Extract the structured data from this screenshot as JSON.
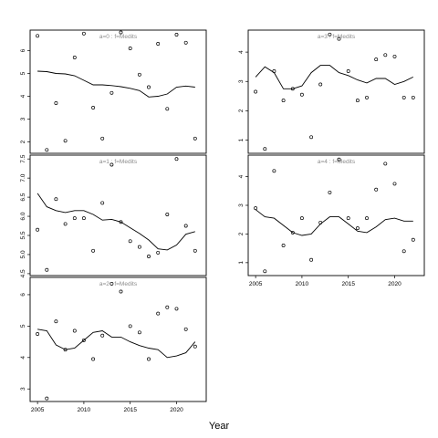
{
  "chart_data": {
    "type": "scatter",
    "xlabel": "Year",
    "x_ticks": [
      2005,
      2010,
      2015,
      2020
    ],
    "panels": [
      {
        "label": "a=0 : f=Medits",
        "xlim": [
          2004.2,
          2023.2
        ],
        "ylim": [
          1.5,
          6.9
        ],
        "y_ticks": [
          2,
          3,
          4,
          5,
          6
        ],
        "points": {
          "x": [
            2005,
            2006,
            2007,
            2008,
            2009,
            2010,
            2011,
            2012,
            2013,
            2014,
            2015,
            2016,
            2017,
            2018,
            2019,
            2020,
            2021,
            2022
          ],
          "y": [
            6.65,
            1.65,
            3.7,
            2.05,
            5.7,
            6.75,
            3.5,
            2.15,
            4.15,
            6.8,
            6.1,
            4.95,
            4.4,
            6.3,
            3.45,
            6.7,
            6.35,
            2.15
          ]
        },
        "fit": {
          "x": [
            2005,
            2006,
            2007,
            2008,
            2009,
            2010,
            2011,
            2012,
            2013,
            2014,
            2015,
            2016,
            2017,
            2018,
            2019,
            2020,
            2021,
            2022
          ],
          "y": [
            5.1,
            5.08,
            5.0,
            4.98,
            4.9,
            4.7,
            4.5,
            4.5,
            4.47,
            4.42,
            4.35,
            4.25,
            3.97,
            4.0,
            4.1,
            4.4,
            4.45,
            4.4
          ]
        }
      },
      {
        "label": "a=1 : f=Medits",
        "xlim": [
          2004.2,
          2023.2
        ],
        "ylim": [
          4.45,
          7.6
        ],
        "y_ticks": [
          4.5,
          5.0,
          5.5,
          6.0,
          6.5,
          7.0,
          7.5
        ],
        "points": {
          "x": [
            2005,
            2006,
            2007,
            2008,
            2009,
            2010,
            2011,
            2012,
            2013,
            2014,
            2015,
            2016,
            2017,
            2018,
            2019,
            2020,
            2021,
            2022
          ],
          "y": [
            5.65,
            4.6,
            6.45,
            5.8,
            5.95,
            5.95,
            5.1,
            6.35,
            7.35,
            5.85,
            5.35,
            5.2,
            4.95,
            5.05,
            6.05,
            7.5,
            5.75,
            5.1
          ]
        },
        "fit": {
          "x": [
            2005,
            2006,
            2007,
            2008,
            2009,
            2010,
            2011,
            2012,
            2013,
            2014,
            2015,
            2016,
            2017,
            2018,
            2019,
            2020,
            2021,
            2022
          ],
          "y": [
            6.6,
            6.25,
            6.15,
            6.1,
            6.15,
            6.15,
            6.05,
            5.9,
            5.92,
            5.85,
            5.7,
            5.55,
            5.38,
            5.15,
            5.12,
            5.25,
            5.53,
            5.6
          ]
        }
      },
      {
        "label": "a=2 : f=Medits",
        "xlim": [
          2004.2,
          2023.2
        ],
        "ylim": [
          2.6,
          6.55
        ],
        "y_ticks": [
          3,
          4,
          5,
          6
        ],
        "points": {
          "x": [
            2005,
            2006,
            2007,
            2008,
            2009,
            2010,
            2011,
            2012,
            2013,
            2014,
            2015,
            2016,
            2017,
            2018,
            2019,
            2020,
            2021,
            2022
          ],
          "y": [
            4.75,
            2.7,
            5.15,
            4.25,
            4.85,
            4.55,
            3.95,
            4.7,
            6.35,
            6.1,
            5.0,
            4.8,
            3.95,
            5.4,
            5.6,
            5.55,
            4.9,
            4.35
          ]
        },
        "fit": {
          "x": [
            2005,
            2006,
            2007,
            2008,
            2009,
            2010,
            2011,
            2012,
            2013,
            2014,
            2015,
            2016,
            2017,
            2018,
            2019,
            2020,
            2021,
            2022
          ],
          "y": [
            4.9,
            4.85,
            4.4,
            4.25,
            4.3,
            4.55,
            4.8,
            4.85,
            4.65,
            4.65,
            4.5,
            4.38,
            4.3,
            4.25,
            4.0,
            4.05,
            4.15,
            4.5
          ]
        }
      },
      {
        "label": "a=3 : f=Medits",
        "xlim": [
          2004.2,
          2023.2
        ],
        "ylim": [
          0.55,
          4.75
        ],
        "y_ticks": [
          1,
          2,
          3,
          4
        ],
        "points": {
          "x": [
            2005,
            2006,
            2007,
            2008,
            2009,
            2010,
            2011,
            2012,
            2013,
            2014,
            2015,
            2016,
            2017,
            2018,
            2019,
            2020,
            2021,
            2022
          ],
          "y": [
            2.65,
            0.7,
            3.35,
            2.35,
            2.75,
            2.55,
            1.1,
            2.9,
            4.6,
            4.45,
            3.35,
            2.35,
            2.45,
            3.75,
            3.9,
            3.85,
            2.45,
            2.45
          ]
        },
        "fit": {
          "x": [
            2005,
            2006,
            2007,
            2008,
            2009,
            2010,
            2011,
            2012,
            2013,
            2014,
            2015,
            2016,
            2017,
            2018,
            2019,
            2020,
            2021,
            2022
          ],
          "y": [
            3.15,
            3.5,
            3.3,
            2.75,
            2.75,
            2.85,
            3.3,
            3.55,
            3.55,
            3.3,
            3.2,
            3.05,
            2.95,
            3.1,
            3.1,
            2.9,
            3.0,
            3.15
          ]
        }
      },
      {
        "label": "a=4 : f=Medits",
        "xlim": [
          2004.2,
          2023.2
        ],
        "ylim": [
          0.55,
          4.75
        ],
        "y_ticks": [
          1,
          2,
          3,
          4
        ],
        "points": {
          "x": [
            2005,
            2006,
            2007,
            2008,
            2009,
            2010,
            2011,
            2012,
            2013,
            2014,
            2015,
            2016,
            2017,
            2018,
            2019,
            2020,
            2021,
            2022
          ],
          "y": [
            2.9,
            0.7,
            4.2,
            1.6,
            2.05,
            2.55,
            1.1,
            2.4,
            3.45,
            4.6,
            2.55,
            2.2,
            2.55,
            3.55,
            4.45,
            3.75,
            1.4,
            1.8
          ]
        },
        "fit": {
          "x": [
            2005,
            2006,
            2007,
            2008,
            2009,
            2010,
            2011,
            2012,
            2013,
            2014,
            2015,
            2016,
            2017,
            2018,
            2019,
            2020,
            2021,
            2022
          ],
          "y": [
            2.85,
            2.6,
            2.55,
            2.3,
            2.05,
            1.95,
            2.0,
            2.35,
            2.6,
            2.6,
            2.35,
            2.1,
            2.05,
            2.25,
            2.5,
            2.55,
            2.45,
            2.45
          ]
        }
      }
    ]
  }
}
